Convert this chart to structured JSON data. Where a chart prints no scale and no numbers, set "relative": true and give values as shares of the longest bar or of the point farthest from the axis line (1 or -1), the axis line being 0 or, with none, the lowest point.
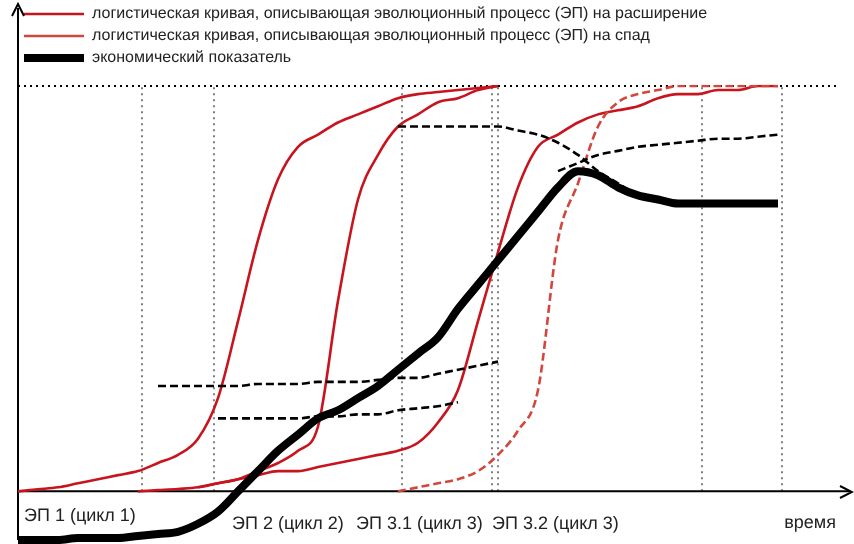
{
  "chart_data": {
    "type": "line",
    "relative": true,
    "xlabel": "время",
    "legend": "top left",
    "marker": "none",
    "categories": [
      null,
      null,
      null,
      null,
      null,
      null,
      null,
      null,
      null,
      null,
      null,
      null,
      null,
      null,
      null,
      null,
      null,
      null,
      null,
      null,
      null,
      null,
      null,
      null,
      null,
      null,
      null,
      null,
      null,
      null,
      null,
      null,
      null,
      null,
      null,
      null,
      null,
      null,
      null,
      null,
      null,
      null
    ],
    "series": [
      {
        "name": "логистическая кривая, описывающая эволюционный процесс (ЭП) на расширение",
        "color": "#c8141e",
        "line_style": "solid",
        "values": [
          0,
          0.005,
          0.01,
          0.02,
          0.03,
          0.04,
          0.05,
          0.07,
          0.09,
          0.13,
          0.23,
          0.42,
          0.62,
          0.77,
          0.85,
          0.88,
          0.91,
          0.93,
          0.95,
          0.97,
          0.98,
          0.985,
          0.99,
          0.995,
          1,
          null,
          null,
          null,
          null,
          null,
          null,
          null,
          null,
          null,
          null,
          null,
          null,
          null,
          null,
          null,
          null,
          null
        ]
      },
      {
        "color": "#c8141e",
        "line_style": "solid",
        "values": [
          null,
          null,
          null,
          null,
          null,
          null,
          0,
          0.003,
          0.006,
          0.01,
          0.02,
          0.03,
          0.05,
          0.07,
          0.1,
          0.16,
          0.47,
          0.72,
          0.83,
          0.9,
          0.93,
          0.96,
          0.97,
          0.99,
          1,
          null,
          null,
          null,
          null,
          null,
          null,
          null,
          null,
          null,
          null,
          null,
          null,
          null,
          null,
          null,
          null,
          null
        ]
      },
      {
        "color": "#c8141e",
        "line_style": "solid",
        "values": [
          null,
          null,
          null,
          null,
          null,
          null,
          null,
          null,
          null,
          0.01,
          0.02,
          0.03,
          0.04,
          0.05,
          0.05,
          0.06,
          0.07,
          0.08,
          0.09,
          0.1,
          0.12,
          0.17,
          0.25,
          0.42,
          0.59,
          0.75,
          0.85,
          0.88,
          0.91,
          0.93,
          0.94,
          0.95,
          0.97,
          0.98,
          0.98,
          0.99,
          0.99,
          1,
          1,
          null,
          null,
          null
        ]
      },
      {
        "name": "логистическая кривая, описывающая эволюционный процесс (ЭП) на спад",
        "color": "#d2463c",
        "line_style": "dashed",
        "values": [
          null,
          null,
          null,
          null,
          null,
          null,
          null,
          null,
          null,
          null,
          null,
          null,
          null,
          null,
          null,
          null,
          null,
          null,
          null,
          0,
          0.01,
          0.02,
          0.03,
          0.05,
          0.09,
          0.15,
          0.25,
          0.62,
          0.76,
          0.9,
          0.96,
          0.98,
          0.99,
          1,
          1,
          1,
          1,
          1,
          1,
          null,
          null,
          null
        ]
      },
      {
        "color": "#000000",
        "line_style": "dashed",
        "values": [
          null,
          null,
          null,
          null,
          null,
          null,
          null,
          0.26,
          0.26,
          0.26,
          0.26,
          0.26,
          0.265,
          0.265,
          0.265,
          0.27,
          0.27,
          0.27,
          0.275,
          0.28,
          0.28,
          0.29,
          0.3,
          0.31,
          0.32,
          null,
          null,
          null,
          null,
          null,
          null,
          null,
          null,
          null,
          null,
          null,
          null,
          null,
          null,
          null,
          null,
          null
        ]
      },
      {
        "color": "#000000",
        "line_style": "dashed",
        "values": [
          null,
          null,
          null,
          null,
          null,
          null,
          null,
          null,
          null,
          null,
          0.18,
          0.18,
          0.18,
          0.18,
          0.18,
          0.185,
          0.185,
          0.19,
          0.19,
          0.2,
          0.205,
          0.21,
          0.22,
          null,
          null,
          null,
          null,
          null,
          null,
          null,
          null,
          null,
          null,
          null,
          null,
          null,
          null,
          null,
          null,
          null,
          null,
          null
        ]
      },
      {
        "color": "#000000",
        "line_style": "dashed",
        "values": [
          null,
          null,
          null,
          null,
          null,
          null,
          null,
          null,
          null,
          null,
          null,
          null,
          null,
          null,
          null,
          null,
          null,
          null,
          null,
          0.9,
          0.9,
          0.9,
          0.9,
          0.9,
          0.9,
          0.89,
          0.88,
          0.86,
          0.83,
          0.79,
          0.76,
          0.73,
          0.72,
          0.71,
          0.71,
          null,
          null,
          null,
          null,
          null,
          null,
          null
        ]
      },
      {
        "color": "#000000",
        "line_style": "dashed",
        "values": [
          null,
          null,
          null,
          null,
          null,
          null,
          null,
          null,
          null,
          null,
          null,
          null,
          null,
          null,
          null,
          null,
          null,
          null,
          null,
          null,
          null,
          null,
          null,
          null,
          null,
          null,
          null,
          0.79,
          0.81,
          0.83,
          0.84,
          0.85,
          0.855,
          0.86,
          0.865,
          0.87,
          0.87,
          0.875,
          0.88,
          null,
          null,
          null
        ]
      },
      {
        "name": "экономический показатель",
        "color": "#000000",
        "line_style": "solid",
        "values": [
          -0.12,
          -0.12,
          -0.12,
          -0.115,
          -0.115,
          -0.115,
          -0.11,
          -0.105,
          -0.1,
          -0.08,
          -0.05,
          0,
          0.05,
          0.1,
          0.14,
          0.18,
          0.2,
          0.23,
          0.26,
          0.3,
          0.34,
          0.38,
          0.45,
          0.51,
          0.57,
          0.63,
          0.69,
          0.75,
          0.79,
          0.78,
          0.75,
          0.73,
          0.72,
          0.71,
          0.71,
          0.71,
          0.71,
          0.71,
          0.71,
          null,
          null,
          null
        ]
      }
    ],
    "ref_lines": [
      {
        "axis": "y",
        "value": 1,
        "color": "#000000",
        "line_style": "dotted"
      }
    ],
    "annotations": [
      "ЭП 1 (цикл 1)",
      "ЭП 2 (цикл 2)",
      "ЭП 3.1 (цикл 3)",
      "ЭП 3.2 (цикл 3)"
    ]
  }
}
